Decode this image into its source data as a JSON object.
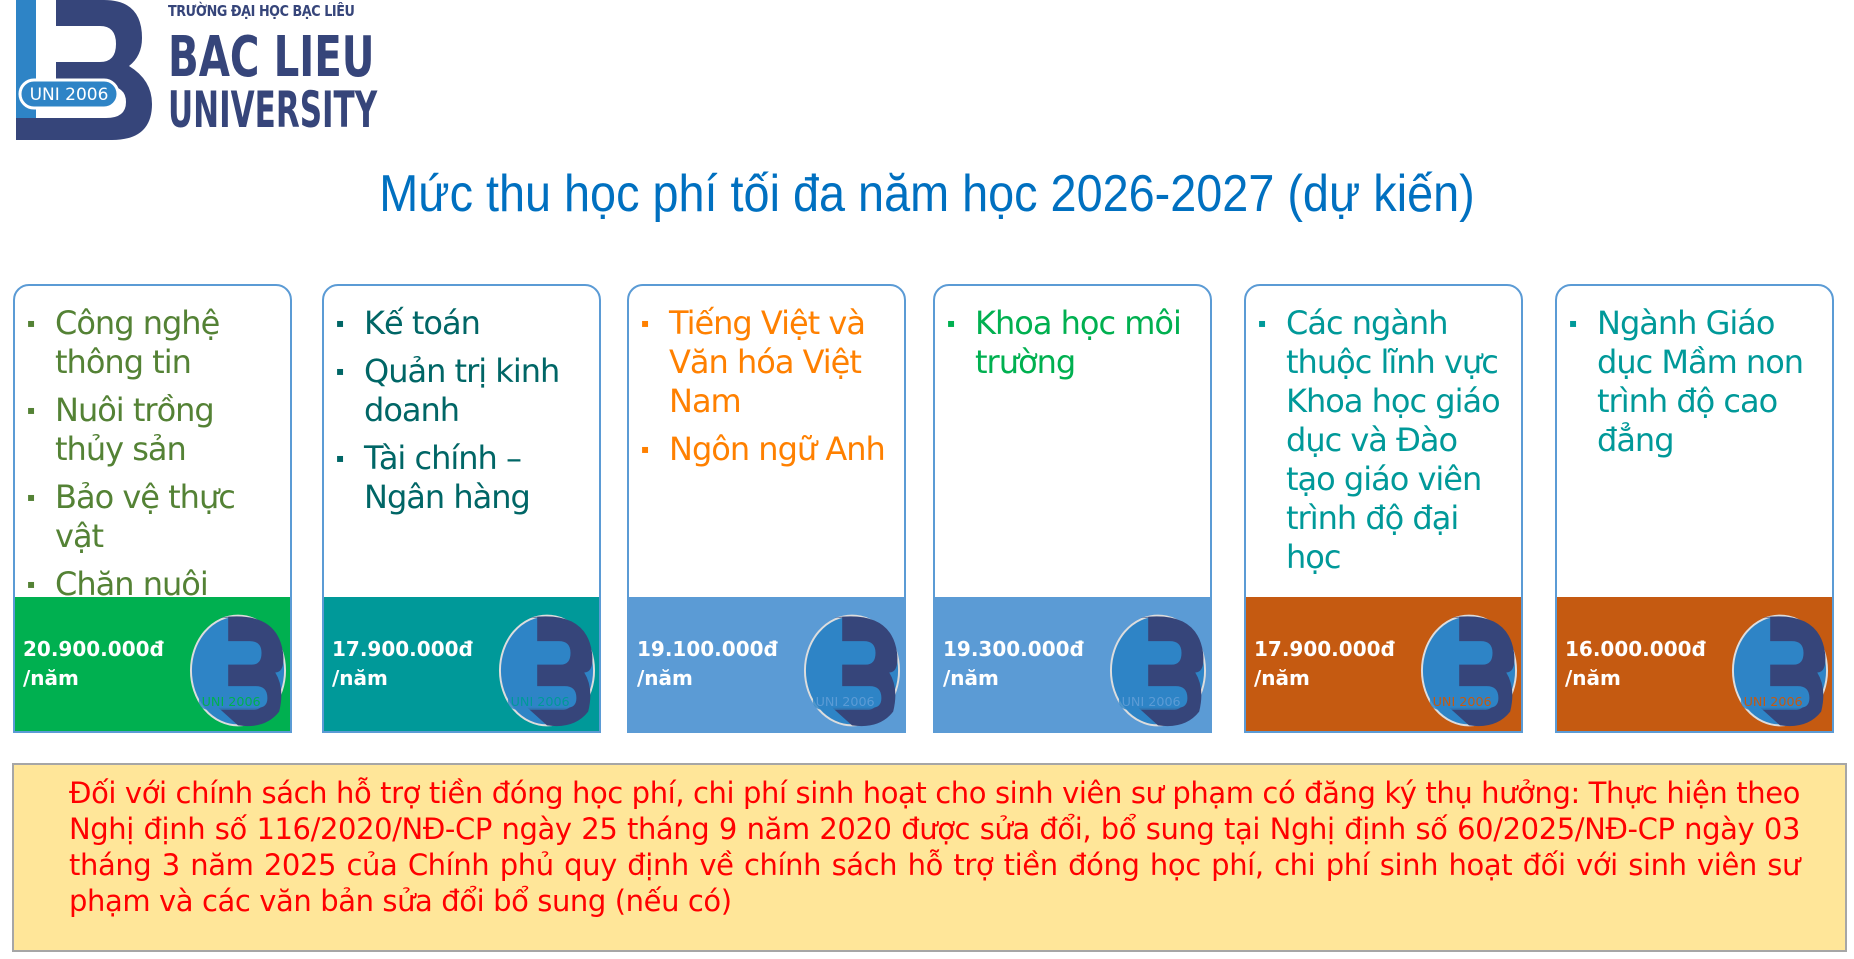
{
  "header": {
    "school_vn": "TRƯỜNG ĐẠI HỌC BẠC LIÊU",
    "name_line1": "BAC LIEU",
    "name_line2": "UNIVERSITY",
    "logo_badge": "UNI 2006"
  },
  "title": "Mức thu học phí tối đa năm học 2026-2027 (dự kiến)",
  "cards": [
    {
      "items": [
        "Công nghệ thông tin",
        "Nuôi trồng thủy sản",
        "Bảo vệ thực vật",
        "Chăn nuôi"
      ],
      "price": "20.900.000đ",
      "unit": "/năm",
      "text_color": "#548235",
      "price_bg": "#00b050"
    },
    {
      "items": [
        "Kế toán",
        "Quản trị kinh doanh",
        "Tài chính – Ngân hàng"
      ],
      "price": "17.900.000đ",
      "unit": "/năm",
      "text_color": "#006666",
      "price_bg": "#009999"
    },
    {
      "items": [
        "Tiếng Việt và Văn hóa Việt Nam",
        "Ngôn ngữ Anh"
      ],
      "price": "19.100.000đ",
      "unit": "/năm",
      "text_color": "#ff8000",
      "price_bg": "#5b9bd5"
    },
    {
      "items": [
        "Khoa học môi trường"
      ],
      "price": "19.300.000đ",
      "unit": "/năm",
      "text_color": "#00b050",
      "price_bg": "#5b9bd5"
    },
    {
      "items": [
        "Các ngành thuộc lĩnh vực Khoa học giáo dục và Đào tạo giáo viên trình độ đại học"
      ],
      "price": "17.900.000đ",
      "unit": "/năm",
      "text_color": "#009999",
      "price_bg": "#c55a11"
    },
    {
      "items": [
        "Ngành Giáo dục Mầm non trình độ cao đẳng"
      ],
      "price": "16.000.000đ",
      "unit": "/năm",
      "text_color": "#009999",
      "price_bg": "#c55a11"
    }
  ],
  "notes": "Đối với chính sách hỗ trợ tiền đóng học phí, chi phí sinh hoạt cho sinh viên sư phạm có đăng ký thụ hưởng: Thực hiện theo Nghị định số 116/2020/NĐ-CP ngày 25 tháng 9 năm 2020 được sửa đổi, bổ sung tại Nghị định số 60/2025/NĐ-CP ngày 03 tháng 3 năm 2025 của Chính phủ quy định về chính sách hỗ trợ tiền đóng học phí, chi phí sinh hoạt đối với sinh viên sư phạm và các văn bản sửa đổi bổ sung (nếu có)"
}
